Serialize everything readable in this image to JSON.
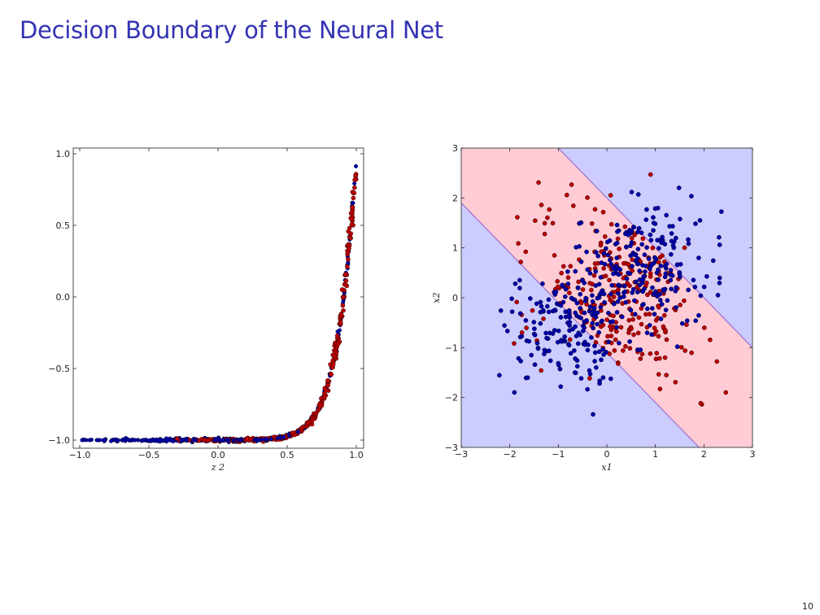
{
  "slide": {
    "title": "Decision Boundary of the Neural Net",
    "page_number": "10"
  },
  "colors": {
    "title": "#3333b3",
    "class_blue": "#0000aa",
    "class_red": "#bb0000",
    "region_blue": "#ccccff",
    "region_red": "#ffccd5",
    "boundary": "#9f6fcf"
  },
  "chart_data": [
    {
      "type": "scatter",
      "title": "",
      "xlabel": "z2 (truncated)",
      "ylabel": "",
      "xlim": [
        -1.0,
        1.0
      ],
      "ylim": [
        -1.0,
        1.0
      ],
      "x_ticks": [
        -1.0,
        -0.5,
        0.0,
        0.5,
        1.0
      ],
      "y_ticks": [
        -1.0,
        -0.5,
        0.0,
        0.5,
        1.0
      ],
      "x_tick_labels": [
        "−1.0",
        "−0.5",
        "0.0",
        "0.5",
        "1.0"
      ],
      "y_tick_labels": [
        "−1.0",
        "−0.5",
        "0.0",
        "0.5",
        "1.0"
      ],
      "grid": false,
      "series": [
        {
          "color": "blue",
          "description": "points lie along curve y = 2*((1+x)/2)^15 - 1 (sampled)",
          "x": [
            -0.99,
            -0.9,
            -0.8,
            -0.7,
            -0.6,
            -0.5,
            -0.4,
            -0.3,
            -0.2,
            -0.1,
            0.0,
            0.1,
            0.2,
            0.3,
            0.4,
            0.5,
            0.6,
            0.7,
            0.8,
            0.85,
            0.9,
            0.93,
            0.95,
            0.97,
            0.98,
            0.99,
            1.0
          ]
        },
        {
          "color": "red",
          "x": [
            -0.6,
            -0.2,
            0.05,
            0.2,
            0.3,
            0.4,
            0.45,
            0.55,
            0.6,
            0.65,
            0.7,
            0.72,
            0.75,
            0.78,
            0.8,
            0.82,
            0.84,
            0.86,
            0.88,
            0.9,
            0.92,
            0.94,
            0.95,
            0.96,
            0.97,
            0.98,
            0.99
          ]
        }
      ]
    },
    {
      "type": "scatter",
      "title": "",
      "xlabel": "x1 (truncated)",
      "ylabel": "x2",
      "xlim": [
        -3,
        3
      ],
      "ylim": [
        -3,
        3
      ],
      "x_ticks": [
        -3,
        -2,
        -1,
        0,
        1,
        2,
        3
      ],
      "y_ticks": [
        -3,
        -2,
        -1,
        0,
        1,
        2,
        3
      ],
      "x_tick_labels": [
        "−3",
        "−2",
        "−1",
        "0",
        "1",
        "2",
        "3"
      ],
      "y_tick_labels": [
        "−3",
        "−2",
        "−1",
        "0",
        "1",
        "2",
        "3"
      ],
      "grid": false,
      "regions": [
        {
          "name": "red band",
          "description": "region between lines x2 = -x1 + 2.0 and x2 = -x1 - 1.1",
          "color": "red"
        },
        {
          "name": "blue regions",
          "description": "outside the band",
          "color": "blue"
        }
      ],
      "series": [
        {
          "color": "red",
          "cluster_center": [
            0.2,
            0.2
          ],
          "spread": 0.9,
          "count": 320
        },
        {
          "color": "blue",
          "cluster_center_1": [
            -0.7,
            -0.6
          ],
          "cluster_center_2": [
            0.8,
            0.6
          ],
          "spread": 0.6,
          "count": 320
        }
      ]
    }
  ]
}
